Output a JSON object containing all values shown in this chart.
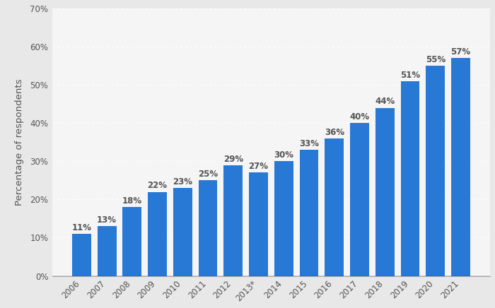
{
  "categories": [
    "2006",
    "2007",
    "2008",
    "2009",
    "2010",
    "2011",
    "2012",
    "2013*",
    "2014",
    "2015",
    "2016",
    "2017",
    "2018",
    "2019",
    "2020",
    "2021"
  ],
  "values": [
    11,
    13,
    18,
    22,
    23,
    25,
    29,
    27,
    30,
    33,
    36,
    40,
    44,
    51,
    55,
    57
  ],
  "bar_color": "#2878d6",
  "ylabel": "Percentage of respondents",
  "ylim": [
    0,
    70
  ],
  "yticks": [
    0,
    10,
    20,
    30,
    40,
    50,
    60,
    70
  ],
  "outer_background": "#e8e8e8",
  "plot_background": "#f5f5f5",
  "grid_color": "#ffffff",
  "label_color": "#555555",
  "label_fontsize": 8.5,
  "tick_fontsize": 8.5,
  "ylabel_fontsize": 9.5
}
